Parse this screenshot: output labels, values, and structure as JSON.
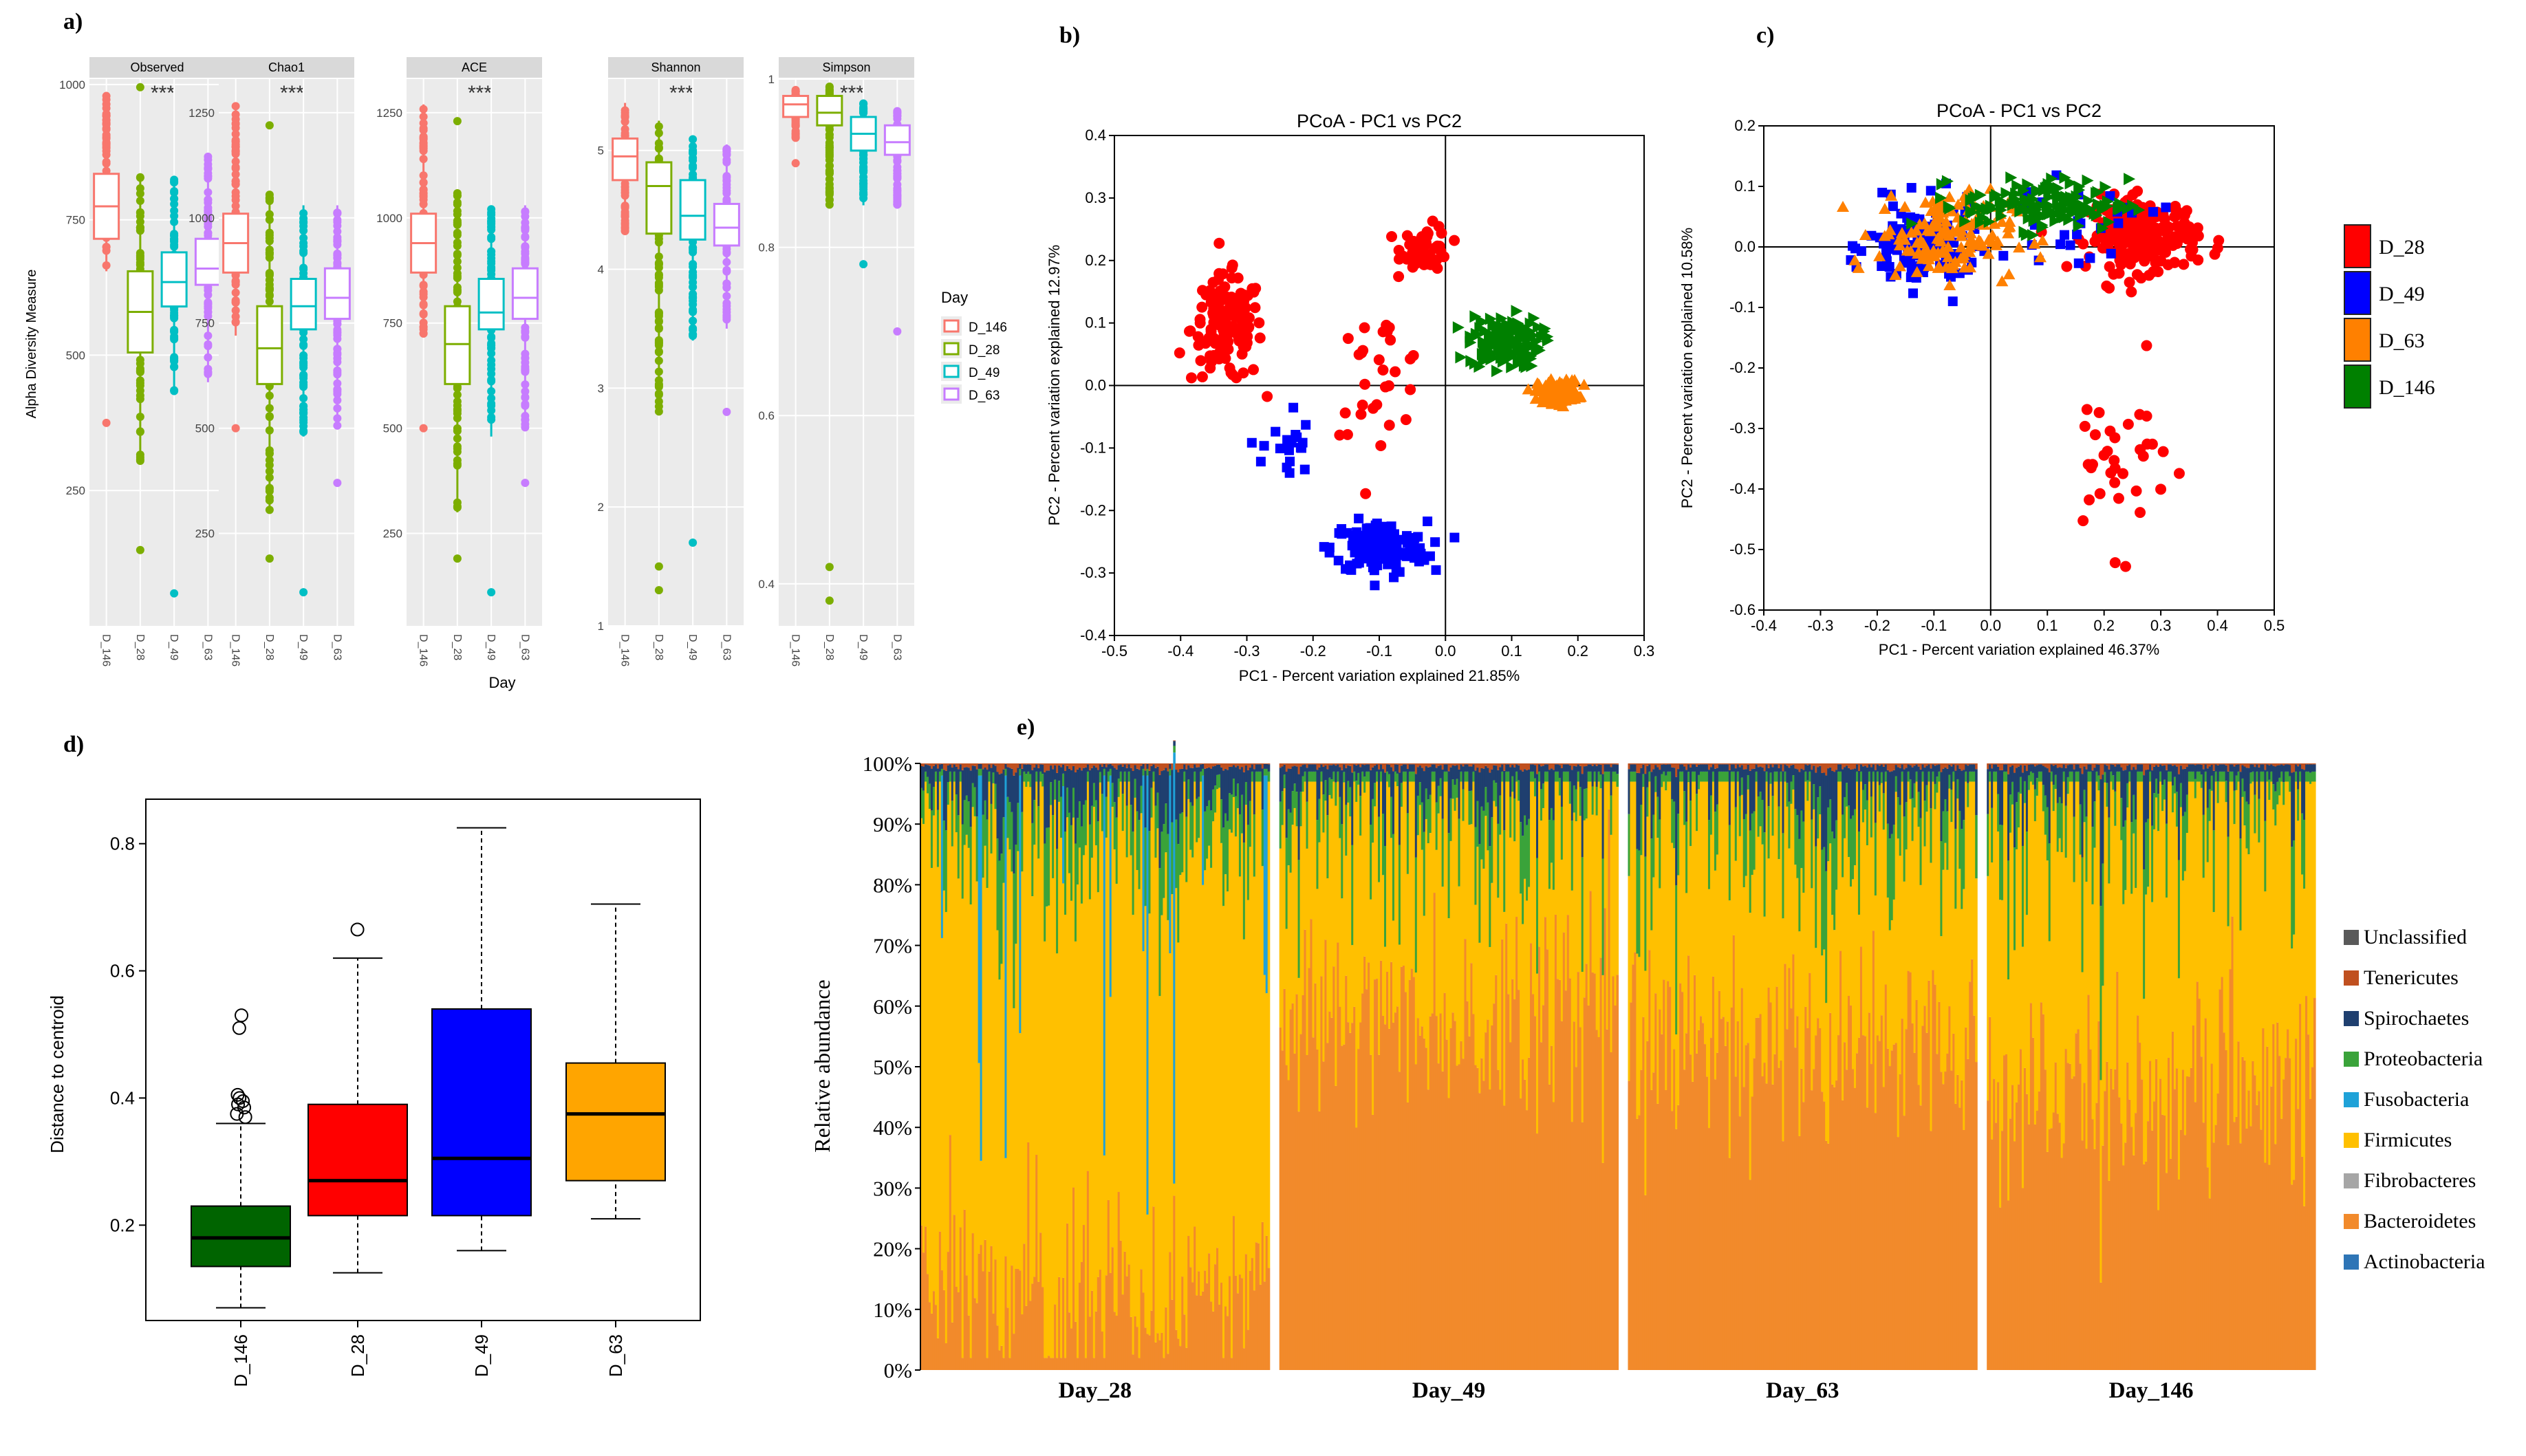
{
  "colors": {
    "D_146_ggplot": "#f8766d",
    "D_28_ggplot": "#7cae00",
    "D_49_ggplot": "#00bfc4",
    "D_63_ggplot": "#c77cff",
    "red": "#ff0000",
    "blue": "#0000ff",
    "orange": "#ff8000",
    "green": "#008000",
    "d_green": "#006400",
    "d_red": "#ff0000",
    "d_blue": "#0000ff",
    "d_orange": "#ffa500",
    "Unclassified": "#595959",
    "Tenericutes": "#c0501f",
    "Spirochaetes": "#1f3f6f",
    "Proteobacteria": "#3aa33a",
    "Fusobacteria": "#1fa2d8",
    "Firmicutes": "#ffc000",
    "Fibrobacteres": "#a6a6a6",
    "Bacteroidetes": "#f28a2b",
    "Actinobacteria": "#2e75b6"
  },
  "chart_data": [
    {
      "panel": "a)",
      "type": "box",
      "ylabel": "Alpha Diversity Measure",
      "xlabel": "Day",
      "legend_title": "Day",
      "legend": [
        "D_146",
        "D_28",
        "D_49",
        "D_63"
      ],
      "categories": [
        "D_146",
        "D_28",
        "D_49",
        "D_63"
      ],
      "facets": [
        {
          "name": "Observed",
          "sig": "***",
          "ylim": [
            0,
            1010
          ],
          "ticks": [
            250,
            500,
            750,
            1000
          ],
          "boxes": [
            [
              655,
              715,
              775,
              835,
              980
            ],
            [
              300,
              505,
              580,
              655,
              830
            ],
            [
              430,
              590,
              635,
              690,
              830
            ],
            [
              450,
              630,
              660,
              715,
              870
            ]
          ],
          "outliers": [
            [
              375
            ],
            [
              140,
              995
            ],
            [
              60
            ],
            []
          ]
        },
        {
          "name": "Chao1",
          "sig": "***",
          "ylim": [
            30,
            1330
          ],
          "ticks": [
            250,
            500,
            750,
            1000,
            1250
          ],
          "boxes": [
            [
              720,
              870,
              940,
              1010,
              1270
            ],
            [
              300,
              605,
              690,
              790,
              1060
            ],
            [
              480,
              735,
              790,
              855,
              1030
            ],
            [
              500,
              760,
              810,
              880,
              1030
            ]
          ],
          "outliers": [
            [
              500
            ],
            [
              190,
              1220
            ],
            [
              110
            ],
            [
              370
            ]
          ]
        },
        {
          "name": "ACE",
          "sig": "***",
          "ylim": [
            30,
            1330
          ],
          "ticks": [
            250,
            500,
            750,
            1000,
            1250
          ],
          "boxes": [
            [
              720,
              870,
              940,
              1010,
              1270
            ],
            [
              300,
              605,
              700,
              790,
              1060
            ],
            [
              480,
              735,
              775,
              855,
              1030
            ],
            [
              500,
              760,
              810,
              880,
              1030
            ]
          ],
          "outliers": [
            [
              500
            ],
            [
              190,
              1230
            ],
            [
              110
            ],
            [
              370
            ]
          ]
        },
        {
          "name": "Shannon",
          "sig": "***",
          "ylim": [
            1,
            5.6
          ],
          "ticks": [
            1,
            2,
            3,
            4,
            5
          ],
          "boxes": [
            [
              4.3,
              4.75,
              4.95,
              5.1,
              5.4
            ],
            [
              2.8,
              4.3,
              4.7,
              4.9,
              5.25
            ],
            [
              3.4,
              4.25,
              4.45,
              4.75,
              5.1
            ],
            [
              3.5,
              4.2,
              4.35,
              4.55,
              5.05
            ]
          ],
          "outliers": [
            [],
            [
              1.3,
              1.5
            ],
            [
              1.7
            ],
            [
              2.8
            ]
          ]
        },
        {
          "name": "Simpson",
          "sig": "***",
          "ylim": [
            0.35,
            1.0
          ],
          "ticks": [
            0.4,
            0.6,
            0.8,
            1.0
          ],
          "boxes": [
            [
              0.93,
              0.955,
              0.97,
              0.98,
              0.99
            ],
            [
              0.85,
              0.945,
              0.96,
              0.98,
              0.995
            ],
            [
              0.85,
              0.915,
              0.935,
              0.955,
              0.975
            ],
            [
              0.85,
              0.91,
              0.925,
              0.945,
              0.965
            ]
          ],
          "outliers": [
            [
              0.9
            ],
            [
              0.38,
              0.42
            ],
            [
              0.78
            ],
            [
              0.7
            ]
          ]
        }
      ]
    },
    {
      "panel": "b)",
      "type": "scatter",
      "title": "PCoA - PC1 vs PC2",
      "xlabel": "PC1 - Percent variation explained 21.85%",
      "ylabel": "PC2 - Percent variation explained 12.97%",
      "xlim": [
        -0.5,
        0.3
      ],
      "ylim": [
        -0.4,
        0.4
      ],
      "xticks": [
        -0.5,
        -0.4,
        -0.3,
        -0.2,
        -0.1,
        0.0,
        0.1,
        0.2,
        0.3
      ],
      "yticks": [
        -0.4,
        -0.3,
        -0.2,
        -0.1,
        0.0,
        0.1,
        0.2,
        0.3,
        0.4
      ],
      "series": [
        {
          "name": "D_28",
          "clusters": [
            {
              "cx": -0.33,
              "cy": 0.09,
              "sx": 0.045,
              "sy": 0.07,
              "n": 140
            },
            {
              "cx": -0.03,
              "cy": 0.22,
              "sx": 0.03,
              "sy": 0.03,
              "n": 55
            },
            {
              "cx": -0.1,
              "cy": 0.02,
              "sx": 0.06,
              "sy": 0.08,
              "n": 30
            }
          ]
        },
        {
          "name": "D_49",
          "clusters": [
            {
              "cx": -0.1,
              "cy": -0.26,
              "sx": 0.06,
              "sy": 0.035,
              "n": 150
            },
            {
              "cx": -0.24,
              "cy": -0.1,
              "sx": 0.03,
              "sy": 0.06,
              "n": 20
            }
          ]
        },
        {
          "name": "D_146",
          "clusters": [
            {
              "cx": 0.09,
              "cy": 0.07,
              "sx": 0.045,
              "sy": 0.035,
              "n": 140
            }
          ]
        },
        {
          "name": "D_63",
          "clusters": [
            {
              "cx": 0.17,
              "cy": -0.01,
              "sx": 0.025,
              "sy": 0.015,
              "n": 160
            }
          ]
        }
      ]
    },
    {
      "panel": "c)",
      "type": "scatter",
      "title": "PCoA - PC1 vs PC2",
      "xlabel": "PC1 - Percent variation explained 46.37%",
      "ylabel": "PC2 - Percent variation explained 10.58%",
      "xlim": [
        -0.4,
        0.5
      ],
      "ylim": [
        -0.6,
        0.2
      ],
      "xticks": [
        -0.4,
        -0.3,
        -0.2,
        -0.1,
        0.0,
        0.1,
        0.2,
        0.3,
        0.4,
        0.5
      ],
      "yticks": [
        -0.6,
        -0.5,
        -0.4,
        -0.3,
        -0.2,
        -0.1,
        0.0,
        0.1,
        0.2
      ],
      "legend": [
        "D_28",
        "D_49",
        "D_63",
        "D_146"
      ],
      "series": [
        {
          "name": "D_28",
          "clusters": [
            {
              "cx": 0.27,
              "cy": 0.02,
              "sx": 0.08,
              "sy": 0.05,
              "n": 220
            },
            {
              "cx": 0.22,
              "cy": -0.35,
              "sx": 0.08,
              "sy": 0.12,
              "n": 35
            }
          ]
        },
        {
          "name": "D_49",
          "clusters": [
            {
              "cx": -0.12,
              "cy": 0.0,
              "sx": 0.08,
              "sy": 0.06,
              "n": 130
            },
            {
              "cx": 0.15,
              "cy": 0.04,
              "sx": 0.12,
              "sy": 0.05,
              "n": 25
            }
          ]
        },
        {
          "name": "D_63",
          "clusters": [
            {
              "cx": -0.08,
              "cy": 0.02,
              "sx": 0.1,
              "sy": 0.06,
              "n": 150
            }
          ]
        },
        {
          "name": "D_146",
          "clusters": [
            {
              "cx": 0.1,
              "cy": 0.07,
              "sx": 0.12,
              "sy": 0.035,
              "n": 140
            }
          ]
        }
      ]
    },
    {
      "panel": "d)",
      "type": "box",
      "ylabel": "Distance to centroid",
      "categories": [
        "D_146",
        "D_28",
        "D_49",
        "D_63"
      ],
      "ylim": [
        0.05,
        0.87
      ],
      "yticks": [
        0.2,
        0.4,
        0.6,
        0.8
      ],
      "boxes": [
        [
          0.07,
          0.135,
          0.18,
          0.23,
          0.36
        ],
        [
          0.125,
          0.215,
          0.27,
          0.39,
          0.62
        ],
        [
          0.16,
          0.215,
          0.305,
          0.54,
          0.825
        ],
        [
          0.21,
          0.27,
          0.375,
          0.455,
          0.705
        ]
      ],
      "outliers": [
        [
          0.37,
          0.375,
          0.385,
          0.39,
          0.395,
          0.4,
          0.405,
          0.51,
          0.53
        ],
        [
          0.665
        ],
        [],
        []
      ]
    },
    {
      "panel": "e)",
      "type": "stacked-bar",
      "ylabel": "Relative abundance",
      "yticks": [
        "0%",
        "10%",
        "20%",
        "30%",
        "40%",
        "50%",
        "60%",
        "70%",
        "80%",
        "90%",
        "100%"
      ],
      "groups": [
        {
          "name": "Day_28",
          "bars": 170,
          "bacteroidetes_mean": 0.14,
          "firmicutes_mean": 0.74
        },
        {
          "name": "Day_49",
          "bars": 165,
          "bacteroidetes_mean": 0.58,
          "firmicutes_mean": 0.34
        },
        {
          "name": "Day_63",
          "bars": 170,
          "bacteroidetes_mean": 0.54,
          "firmicutes_mean": 0.37
        },
        {
          "name": "Day_146",
          "bars": 160,
          "bacteroidetes_mean": 0.45,
          "firmicutes_mean": 0.47
        }
      ],
      "phyla_stack": [
        "Bacteroidetes",
        "Firmicutes",
        "Fibrobacteres",
        "Fusobacteria",
        "Proteobacteria",
        "Spirochaetes",
        "Tenericutes",
        "Unclassified",
        "Actinobacteria"
      ],
      "legend": [
        "Unclassified",
        "Tenericutes",
        "Spirochaetes",
        "Proteobacteria",
        "Fusobacteria",
        "Firmicutes",
        "Fibrobacteres",
        "Bacteroidetes",
        "Actinobacteria"
      ]
    }
  ]
}
